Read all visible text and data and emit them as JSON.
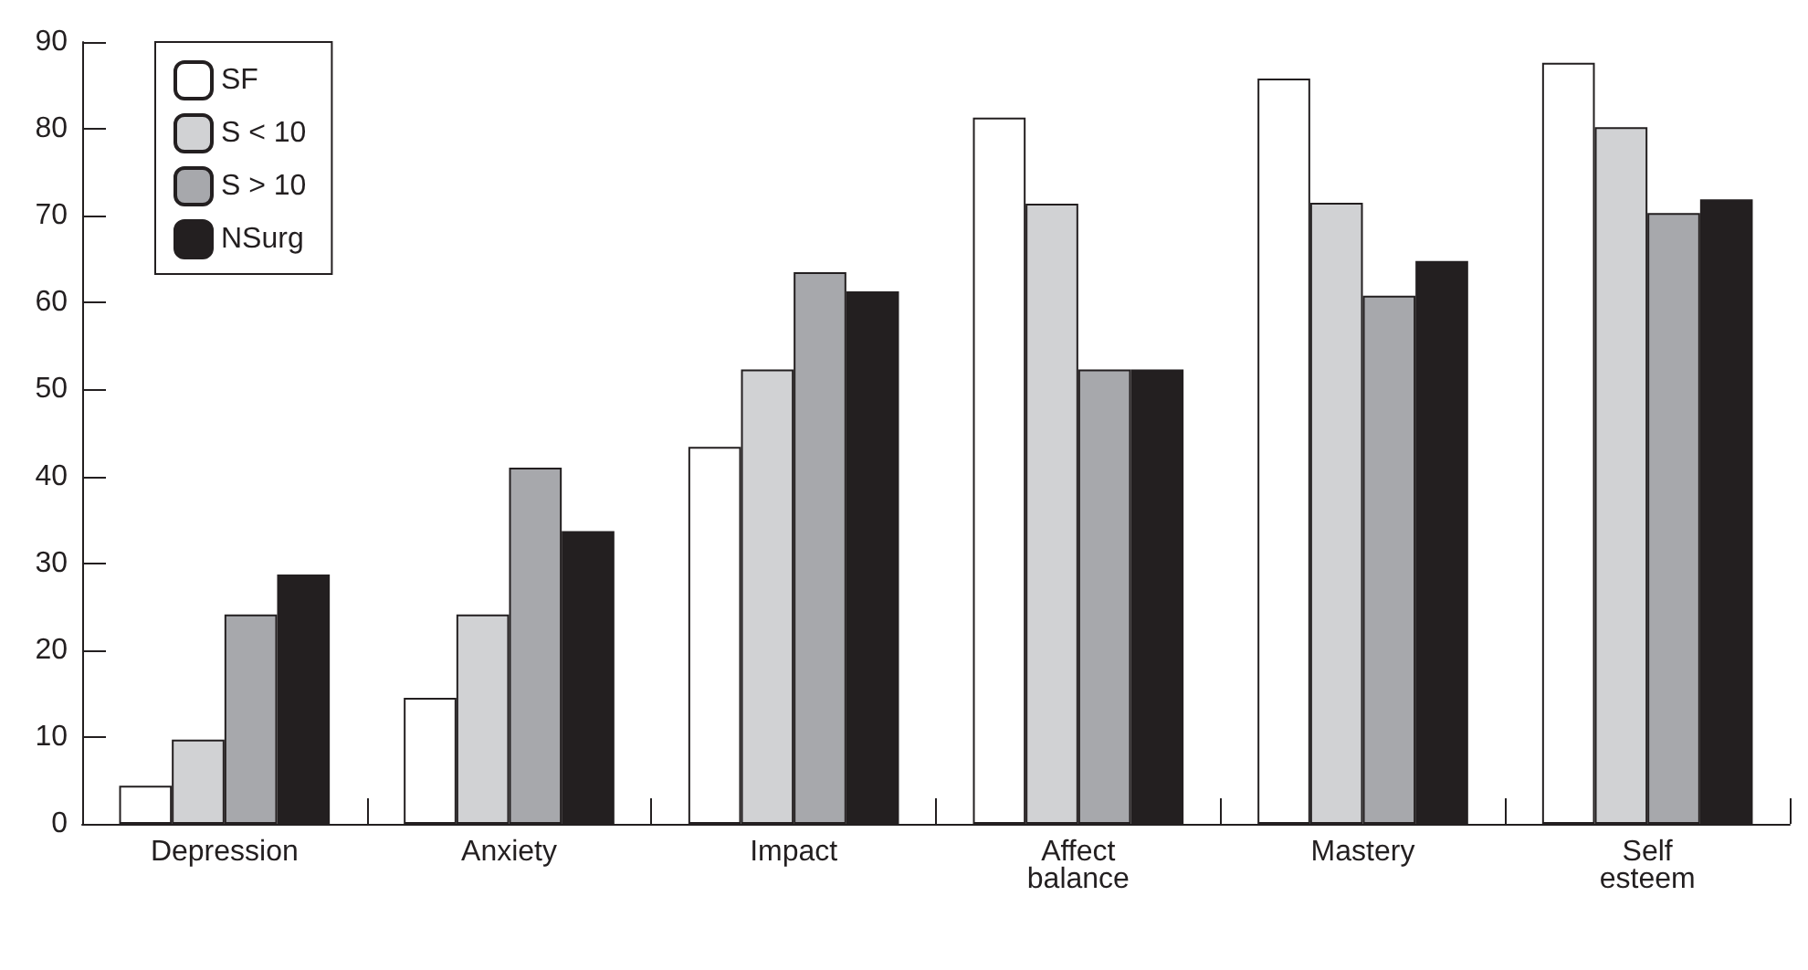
{
  "chart_data": {
    "type": "bar",
    "categories": [
      "Depression",
      "Anxiety",
      "Impact",
      "Affect\nbalance",
      "Mastery",
      "Self\nesteem"
    ],
    "series": [
      {
        "name": "SF",
        "color": "#ffffff",
        "values": [
          4.4,
          14.5,
          43.4,
          81.3,
          85.8,
          87.6
        ]
      },
      {
        "name": "S < 10",
        "color": "#d1d2d4",
        "values": [
          9.7,
          24.1,
          52.3,
          71.4,
          71.5,
          80.2
        ]
      },
      {
        "name": "S > 10",
        "color": "#a7a8ac",
        "values": [
          24.1,
          41.0,
          63.5,
          52.3,
          60.8,
          70.3
        ]
      },
      {
        "name": "NSurg",
        "color": "#231f20",
        "values": [
          28.7,
          33.7,
          61.3,
          52.3,
          64.8,
          71.9
        ]
      }
    ],
    "ylim": [
      0,
      90
    ],
    "yticks": [
      0,
      10,
      20,
      30,
      40,
      50,
      60,
      70,
      80,
      90
    ],
    "grid": false,
    "legend": "top left"
  }
}
